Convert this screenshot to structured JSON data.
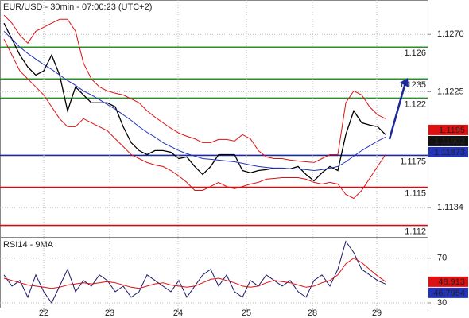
{
  "chart_data": [
    {
      "type": "line",
      "title": "EUR/USD - 30min - 07:00:23 (UTC+2)",
      "xlim": [
        0,
        49
      ],
      "ylim": [
        1.1111,
        1.1297
      ],
      "yticks": [
        {
          "value": 1.127,
          "label": "1.1270"
        },
        1.1225,
        1.1134
      ],
      "grid": true,
      "series": [
        {
          "color": "#000000",
          "values": [
            1.12788,
            1.12663,
            1.12538,
            1.12444,
            1.12381,
            1.12413,
            1.12538,
            1.12381,
            1.121,
            1.12288,
            1.12225,
            1.12163,
            1.12163,
            1.12163,
            1.12131,
            1.11975,
            1.1185,
            1.11788,
            1.11756,
            1.11788,
            1.11788,
            1.11775,
            1.11725,
            1.11738,
            1.11663,
            1.116,
            1.11663,
            1.11756,
            1.11756,
            1.11756,
            1.11631,
            1.11613,
            1.11631,
            1.11638,
            1.1165,
            1.1165,
            1.11644,
            1.11663,
            1.116,
            1.1155,
            1.11613,
            1.11663,
            1.11631,
            1.11913,
            1.121,
            1.12006,
            1.11988,
            1.11975,
            1.11913
          ]
        },
        {
          "color": "#2233bb",
          "values": [
            1.12725,
            1.12663,
            1.126,
            1.1255,
            1.12506,
            1.12463,
            1.12425,
            1.12381,
            1.12338,
            1.123,
            1.12256,
            1.12225,
            1.12188,
            1.1215,
            1.12113,
            1.12069,
            1.12025,
            1.11975,
            1.11931,
            1.11894,
            1.1185,
            1.11819,
            1.11788,
            1.11763,
            1.11744,
            1.11725,
            1.11719,
            1.11713,
            1.11706,
            1.117,
            1.11688,
            1.11675,
            1.11663,
            1.11656,
            1.1165,
            1.1165,
            1.11644,
            1.11644,
            1.11638,
            1.11631,
            1.11638,
            1.1165,
            1.11663,
            1.117,
            1.11744,
            1.11788,
            1.11825,
            1.11863,
            1.11894
          ]
        },
        {
          "color": "#dd1111",
          "values": [
            1.1285,
            1.12788,
            1.12694,
            1.12631,
            1.12725,
            1.12756,
            1.12788,
            1.12819,
            1.12819,
            1.12725,
            1.12475,
            1.1235,
            1.12288,
            1.12256,
            1.12238,
            1.12225,
            1.12194,
            1.12163,
            1.121,
            1.1205,
            1.12006,
            1.11963,
            1.11925,
            1.119,
            1.11881,
            1.1185,
            1.1185,
            1.11875,
            1.11875,
            1.11863,
            1.11913,
            1.11881,
            1.11788,
            1.11738,
            1.11725,
            1.11725,
            1.11713,
            1.11706,
            1.117,
            1.11694,
            1.11725,
            1.11756,
            1.11756,
            1.12163,
            1.12256,
            1.12225,
            1.12131,
            1.12069,
            1.12038
          ]
        },
        {
          "color": "#dd1111",
          "values": [
            1.12663,
            1.12538,
            1.12413,
            1.1235,
            1.12288,
            1.12225,
            1.12131,
            1.12038,
            1.11975,
            1.11975,
            1.12038,
            1.12006,
            1.11975,
            1.11944,
            1.11881,
            1.11819,
            1.11756,
            1.11725,
            1.11694,
            1.11675,
            1.11663,
            1.11631,
            1.11588,
            1.11538,
            1.11475,
            1.11475,
            1.11506,
            1.11538,
            1.11506,
            1.11488,
            1.11506,
            1.11525,
            1.11538,
            1.11563,
            1.11569,
            1.11575,
            1.11575,
            1.11575,
            1.11563,
            1.11538,
            1.11525,
            1.11538,
            1.11525,
            1.11444,
            1.11413,
            1.11475,
            1.11569,
            1.11663,
            1.11756
          ]
        }
      ],
      "levels": [
        {
          "value": 1.126,
          "color": "#2e8b2e"
        },
        {
          "value": 1.1235,
          "color": "#2e8b2e"
        },
        {
          "value": 1.122,
          "color": "#2e8b2e"
        },
        {
          "value": 1.1175,
          "color": "#1a2a9a"
        },
        {
          "value": 1.115,
          "color": "#d01010"
        },
        {
          "value": 1.112,
          "color": "#d01010"
        }
      ],
      "price_tags": [
        {
          "value": 1.1195,
          "color": "#dd1111"
        },
        {
          "value": 1.11902,
          "color": "#111111"
        },
        {
          "value": 1.11873,
          "color": "#2233bb"
        }
      ]
    },
    {
      "type": "line",
      "title": "RSI14 - 9MA",
      "xlim": [
        0,
        49
      ],
      "ylim": [
        25,
        89
      ],
      "yticks": [
        70,
        30
      ],
      "xticks": [
        {
          "value": 5,
          "label": "22"
        },
        {
          "value": 13.3,
          "label": "23"
        },
        {
          "value": 21.9,
          "label": "24"
        },
        {
          "value": 30.5,
          "label": "25"
        },
        {
          "value": 38.8,
          "label": "28"
        },
        {
          "value": 46.9,
          "label": "29"
        }
      ],
      "grid": true,
      "series": [
        {
          "color": "#1a1a6a",
          "values": [
            55,
            45,
            50,
            35,
            55,
            40,
            30,
            45,
            60,
            40,
            50,
            45,
            55,
            50,
            40,
            45,
            35,
            40,
            55,
            50,
            45,
            40,
            50,
            35,
            45,
            55,
            60,
            45,
            55,
            40,
            35,
            50,
            45,
            55,
            50,
            45,
            50,
            40,
            35,
            50,
            55,
            45,
            60,
            85,
            75,
            60,
            55,
            50,
            46.8
          ]
        },
        {
          "color": "#dd1111",
          "values": [
            52,
            50,
            48,
            46,
            45,
            44,
            43,
            44,
            46,
            47,
            48,
            47,
            48,
            49,
            48,
            46,
            44,
            43,
            45,
            47,
            48,
            46,
            45,
            44,
            45,
            48,
            51,
            52,
            50,
            48,
            45,
            44,
            45,
            48,
            50,
            49,
            48,
            46,
            44,
            45,
            48,
            50,
            55,
            65,
            70,
            66,
            60,
            54,
            49
          ]
        }
      ],
      "price_tags": [
        {
          "value": 48.913,
          "color": "#dd1111"
        },
        {
          "value": 46.7954,
          "color": "#2233bb"
        }
      ]
    }
  ]
}
